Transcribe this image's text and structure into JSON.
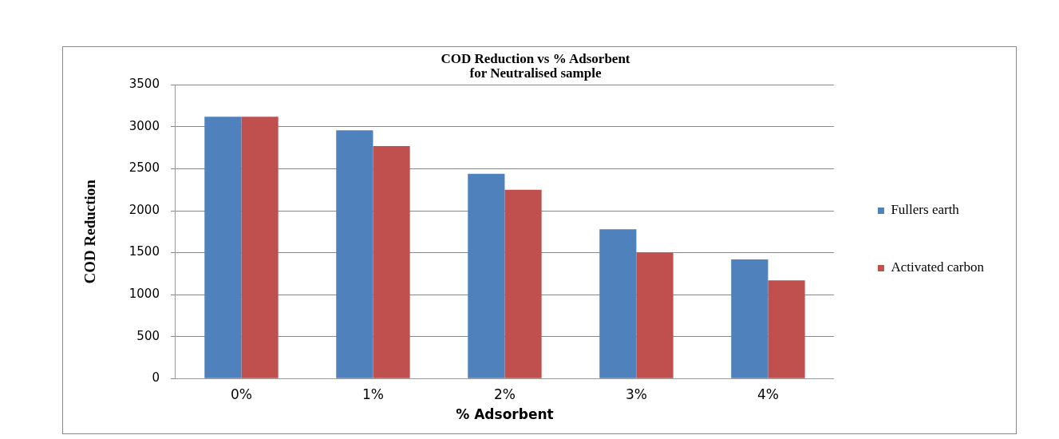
{
  "chart_data": {
    "type": "bar",
    "title": [
      "COD Reduction vs % Adsorbent",
      "for Neutralised sample"
    ],
    "xlabel": "% Adsorbent",
    "ylabel": "COD Reduction",
    "categories": [
      "0%",
      "1%",
      "2%",
      "3%",
      "4%"
    ],
    "series": [
      {
        "name": "Fullers earth",
        "color": "#4f81bd",
        "values": [
          3120,
          2960,
          2440,
          1780,
          1420
        ]
      },
      {
        "name": "Activated carbon",
        "color": "#c0504d",
        "values": [
          3120,
          2770,
          2250,
          1500,
          1170
        ]
      }
    ],
    "ylim": [
      0,
      3500
    ],
    "yticks": [
      0,
      500,
      1000,
      1500,
      2000,
      2500,
      3000,
      3500
    ],
    "grid": "y",
    "legend": "right"
  }
}
